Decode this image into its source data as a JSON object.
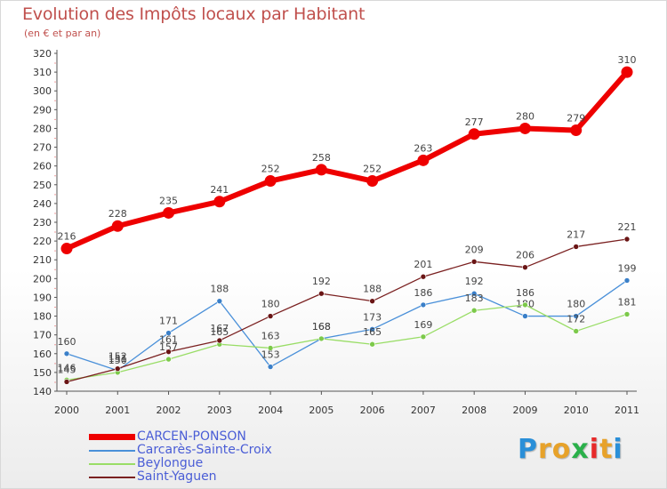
{
  "chart_data": {
    "type": "line",
    "title": "Evolution des Impôts locaux par Habitant",
    "subtitle": "(en € et par an)",
    "xlabel": "",
    "ylabel": "",
    "x": [
      "2000",
      "2001",
      "2002",
      "2003",
      "2004",
      "2005",
      "2006",
      "2007",
      "2008",
      "2009",
      "2010",
      "2011"
    ],
    "ylim": [
      140,
      320
    ],
    "yticks": [
      140,
      150,
      160,
      170,
      180,
      190,
      200,
      210,
      220,
      230,
      240,
      250,
      260,
      270,
      280,
      290,
      300,
      310,
      320
    ],
    "grid": false,
    "legend_position": "bottom-left",
    "series": [
      {
        "name": "Carcarès-Sainte-Croix",
        "color": "#4a90d9",
        "marker": "#3a7fc8",
        "values": [
          160,
          151,
          171,
          188,
          153,
          168,
          173,
          186,
          192,
          180,
          180,
          199
        ]
      },
      {
        "name": "Beylongue",
        "color": "#99dd66",
        "marker": "#7cc94a",
        "values": [
          146,
          150,
          157,
          165,
          163,
          168,
          165,
          169,
          183,
          186,
          172,
          181
        ]
      },
      {
        "name": "Saint-Yaguen",
        "color": "#7a2020",
        "marker": "#6a1515",
        "values": [
          145,
          152,
          161,
          167,
          180,
          192,
          188,
          201,
          209,
          206,
          217,
          221
        ]
      },
      {
        "name": "CARCEN-PONSON",
        "color": "#ee0000",
        "marker": "#ee0000",
        "values": [
          216,
          228,
          235,
          241,
          252,
          258,
          252,
          263,
          277,
          280,
          279,
          310
        ]
      }
    ],
    "legend_order": [
      "CARCEN-PONSON",
      "Carcarès-Sainte-Croix",
      "Beylongue",
      "Saint-Yaguen"
    ]
  },
  "logo": {
    "letters": [
      "P",
      "r",
      "o",
      "x",
      "i",
      "t",
      "i"
    ],
    "colors": [
      "#2a8fd8",
      "#e7a22a",
      "#e7a22a",
      "#2ab04a",
      "#e72a2a",
      "#e7a22a",
      "#2a8fd8"
    ]
  }
}
